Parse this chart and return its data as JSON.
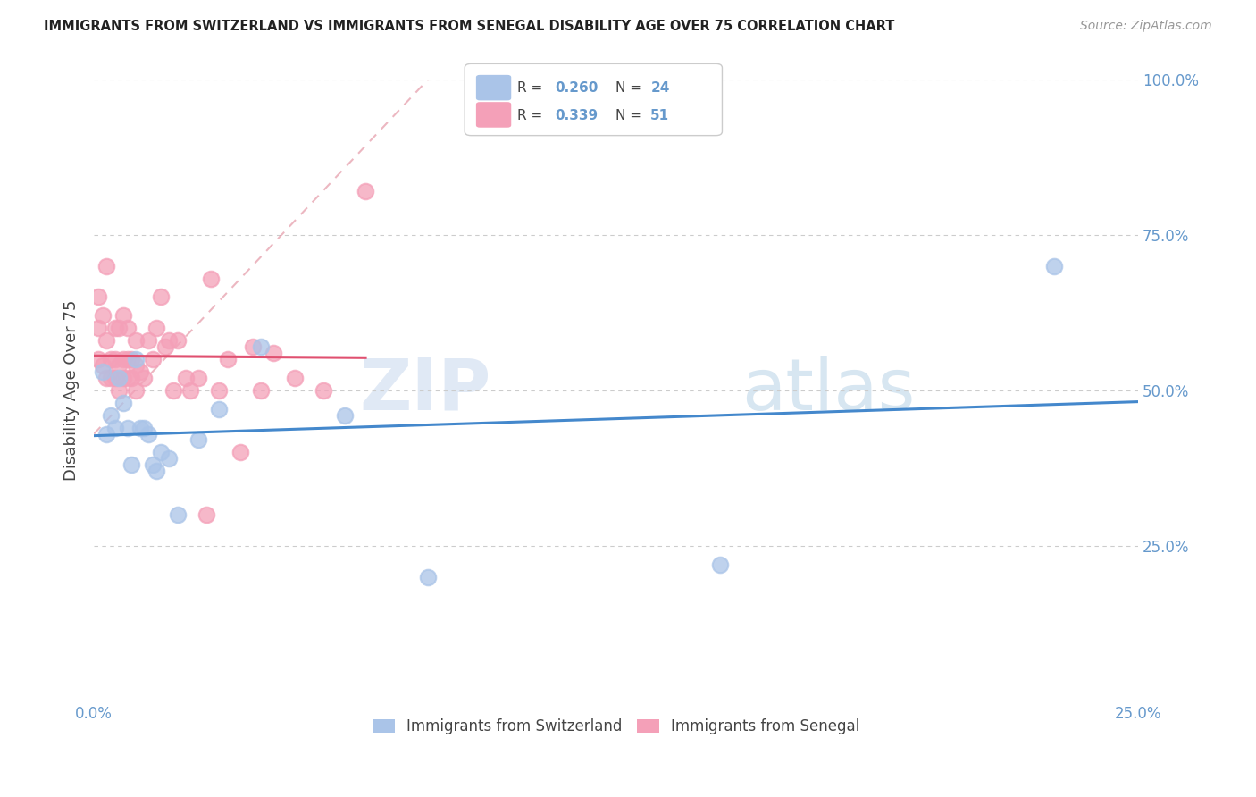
{
  "title": "IMMIGRANTS FROM SWITZERLAND VS IMMIGRANTS FROM SENEGAL DISABILITY AGE OVER 75 CORRELATION CHART",
  "source": "Source: ZipAtlas.com",
  "ylabel": "Disability Age Over 75",
  "x_ticks": [
    0.0,
    0.05,
    0.1,
    0.15,
    0.2,
    0.25
  ],
  "x_tick_labels": [
    "0.0%",
    "",
    "",
    "",
    "",
    "25.0%"
  ],
  "y_ticks": [
    0.0,
    0.25,
    0.5,
    0.75,
    1.0
  ],
  "y_tick_labels": [
    "",
    "25.0%",
    "50.0%",
    "75.0%",
    "100.0%"
  ],
  "xlim": [
    0.0,
    0.25
  ],
  "ylim": [
    0.0,
    1.0
  ],
  "r_switzerland": "0.260",
  "n_switzerland": "24",
  "r_senegal": "0.339",
  "n_senegal": "51",
  "color_switzerland": "#aac4e8",
  "color_senegal": "#f4a0b8",
  "line_color_switzerland": "#4488cc",
  "line_color_senegal": "#e05070",
  "diag_color": "#e08898",
  "switzerland_x": [
    0.002,
    0.003,
    0.004,
    0.005,
    0.006,
    0.007,
    0.008,
    0.009,
    0.01,
    0.011,
    0.012,
    0.013,
    0.014,
    0.015,
    0.016,
    0.018,
    0.02,
    0.025,
    0.03,
    0.04,
    0.06,
    0.08,
    0.15,
    0.23
  ],
  "switzerland_y": [
    0.53,
    0.43,
    0.46,
    0.44,
    0.52,
    0.48,
    0.44,
    0.38,
    0.55,
    0.44,
    0.44,
    0.43,
    0.38,
    0.37,
    0.4,
    0.39,
    0.3,
    0.42,
    0.47,
    0.57,
    0.46,
    0.2,
    0.22,
    0.7
  ],
  "senegal_x": [
    0.001,
    0.001,
    0.001,
    0.002,
    0.002,
    0.003,
    0.003,
    0.003,
    0.004,
    0.004,
    0.005,
    0.005,
    0.005,
    0.006,
    0.006,
    0.006,
    0.007,
    0.007,
    0.007,
    0.008,
    0.008,
    0.008,
    0.009,
    0.009,
    0.01,
    0.01,
    0.01,
    0.011,
    0.012,
    0.013,
    0.014,
    0.015,
    0.016,
    0.017,
    0.018,
    0.019,
    0.02,
    0.022,
    0.023,
    0.025,
    0.027,
    0.028,
    0.03,
    0.032,
    0.035,
    0.038,
    0.04,
    0.043,
    0.048,
    0.055,
    0.065
  ],
  "senegal_y": [
    0.55,
    0.6,
    0.65,
    0.54,
    0.62,
    0.52,
    0.58,
    0.7,
    0.52,
    0.55,
    0.52,
    0.55,
    0.6,
    0.5,
    0.54,
    0.6,
    0.52,
    0.55,
    0.62,
    0.52,
    0.55,
    0.6,
    0.52,
    0.55,
    0.5,
    0.54,
    0.58,
    0.53,
    0.52,
    0.58,
    0.55,
    0.6,
    0.65,
    0.57,
    0.58,
    0.5,
    0.58,
    0.52,
    0.5,
    0.52,
    0.3,
    0.68,
    0.5,
    0.55,
    0.4,
    0.57,
    0.5,
    0.56,
    0.52,
    0.5,
    0.82
  ],
  "watermark_zip": "ZIP",
  "watermark_atlas": "atlas",
  "background_color": "#ffffff",
  "grid_color": "#cccccc",
  "right_label_color": "#6699cc",
  "legend_label_color": "#6699cc"
}
